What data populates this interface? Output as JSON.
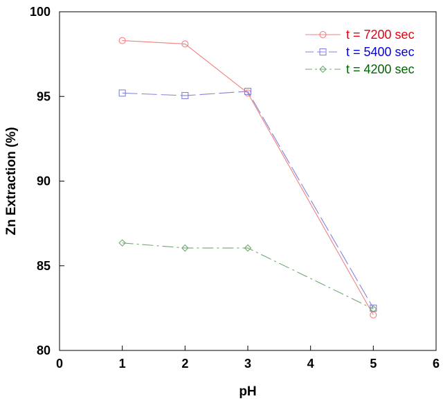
{
  "chart_data": {
    "type": "line",
    "title": "",
    "xlabel": "pH",
    "ylabel": "Zn Extraction (%)",
    "xlim": [
      0,
      6
    ],
    "ylim": [
      80,
      100
    ],
    "xticks": [
      "0",
      "1",
      "2",
      "3",
      "4",
      "5",
      "6"
    ],
    "yticks": [
      "80",
      "85",
      "90",
      "95",
      "100"
    ],
    "grid": false,
    "legend_position": "top-right",
    "series": [
      {
        "name": "t = 7200 sec",
        "color": "#e8000b",
        "line_color": "#f08080",
        "marker": "circle",
        "dash": "solid",
        "x": [
          1,
          2,
          3,
          5
        ],
        "y": [
          98.3,
          98.1,
          95.2,
          82.1
        ]
      },
      {
        "name": "t = 5400 sec",
        "color": "#0000ee",
        "line_color": "#8080e0",
        "marker": "square",
        "dash": "long-dash",
        "x": [
          1,
          2,
          3,
          5
        ],
        "y": [
          95.2,
          95.05,
          95.3,
          82.5
        ]
      },
      {
        "name": "t = 4200 sec",
        "color": "#006400",
        "line_color": "#6fa86f",
        "marker": "diamond",
        "dash": "dash-dot",
        "x": [
          1,
          2,
          3,
          5
        ],
        "y": [
          86.35,
          86.05,
          86.05,
          82.45
        ]
      }
    ]
  }
}
